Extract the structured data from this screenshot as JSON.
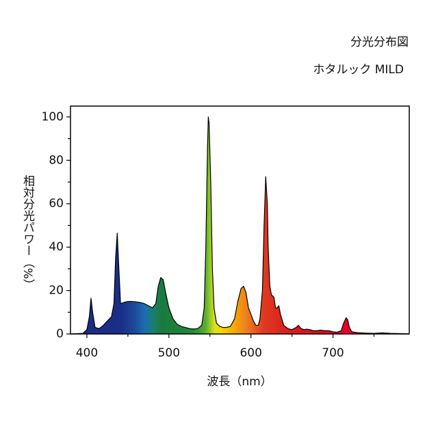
{
  "chart_data": {
    "type": "area",
    "title": "分光分布図",
    "subtitle": "ホタルック MILD",
    "x_label": "波長（nm）",
    "y_label": "相対分光パワー（%）",
    "xlim": [
      380,
      793
    ],
    "ylim": [
      0,
      105
    ],
    "xticks": [
      400,
      500,
      600,
      700
    ],
    "xminorticks": [
      450,
      550,
      650,
      750
    ],
    "yticks": [
      0,
      20,
      40,
      60,
      80,
      100
    ],
    "yminorticks": [
      10,
      30,
      50,
      70,
      90
    ],
    "x": [
      380,
      395,
      400,
      403,
      405,
      407,
      410,
      415,
      420,
      425,
      430,
      433,
      435,
      437,
      439,
      441,
      445,
      450,
      455,
      460,
      465,
      470,
      475,
      480,
      484,
      487,
      490,
      493,
      496,
      500,
      505,
      510,
      515,
      520,
      525,
      530,
      535,
      540,
      543,
      545,
      547,
      548,
      549,
      551,
      553,
      555,
      558,
      562,
      566,
      570,
      575,
      580,
      584,
      588,
      591,
      594,
      597,
      600,
      603,
      606,
      609,
      611,
      614,
      616,
      618,
      620,
      621,
      623,
      625,
      628,
      630,
      632,
      634,
      636,
      640,
      645,
      650,
      655,
      658,
      661,
      665,
      668,
      672,
      676,
      680,
      685,
      690,
      695,
      700,
      705,
      710,
      713,
      716,
      718,
      720,
      723,
      730,
      740,
      750,
      760,
      770,
      780,
      793
    ],
    "values": [
      0,
      0.3,
      2,
      8,
      16.5,
      10,
      3,
      2.5,
      4,
      6,
      8,
      14,
      35,
      46.5,
      30,
      14,
      14.5,
      15,
      15,
      14.8,
      14.5,
      14,
      13,
      12,
      14,
      22,
      26,
      25,
      19,
      12,
      7,
      4.5,
      3.5,
      3,
      2.5,
      2.3,
      2.5,
      4,
      12,
      40,
      85,
      100,
      97,
      70,
      30,
      12,
      5,
      3.5,
      3,
      3,
      3.5,
      7,
      15,
      21,
      22,
      19,
      12,
      9,
      6,
      4,
      4,
      7,
      20,
      50,
      72.5,
      60,
      40,
      22,
      18,
      17,
      12,
      12,
      13,
      9,
      4,
      2.5,
      2,
      3,
      4,
      2.5,
      2,
      2.2,
      2,
      1.5,
      1.5,
      1.8,
      1.5,
      1.5,
      1,
      0.8,
      1.5,
      5,
      7.5,
      6.5,
      3,
      1,
      0.6,
      0.4,
      0.3,
      0.5,
      0.3,
      0.2,
      0.1
    ]
  }
}
